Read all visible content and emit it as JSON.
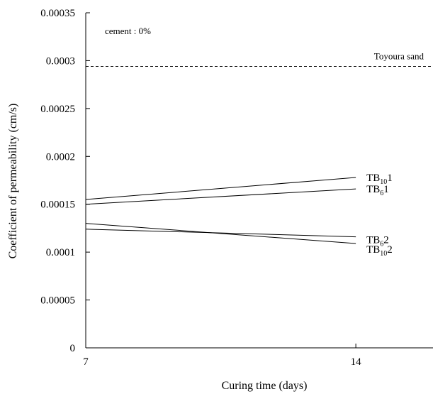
{
  "chart_data": {
    "type": "line",
    "xlabel": "Curing time (days)",
    "ylabel": "Coefficient of permeability (cm/s)",
    "annotation": "cement : 0%",
    "x": [
      7,
      14
    ],
    "xlim": [
      7,
      16
    ],
    "ylim": [
      0,
      0.00035
    ],
    "xticks": [
      "7",
      "14"
    ],
    "yticks": [
      "0",
      "0.00005",
      "0.0001",
      "0.00015",
      "0.0002",
      "0.00025",
      "0.0003",
      "0.00035"
    ],
    "grid": false,
    "reference_line": {
      "name": "Toyoura sand",
      "value": 0.000294,
      "style": "dashed"
    },
    "series": [
      {
        "name": "TB101",
        "label_base": "TB",
        "label_sub": "10",
        "label_suffix": "1",
        "values": [
          0.000155,
          0.000178
        ]
      },
      {
        "name": "TB61",
        "label_base": "TB",
        "label_sub": "6",
        "label_suffix": "1",
        "values": [
          0.00015,
          0.000166
        ]
      },
      {
        "name": "TB62",
        "label_base": "TB",
        "label_sub": "6",
        "label_suffix": "2",
        "values": [
          0.000124,
          0.000116
        ]
      },
      {
        "name": "TB102",
        "label_base": "TB",
        "label_sub": "10",
        "label_suffix": "2",
        "values": [
          0.00013,
          0.000109
        ]
      }
    ]
  }
}
